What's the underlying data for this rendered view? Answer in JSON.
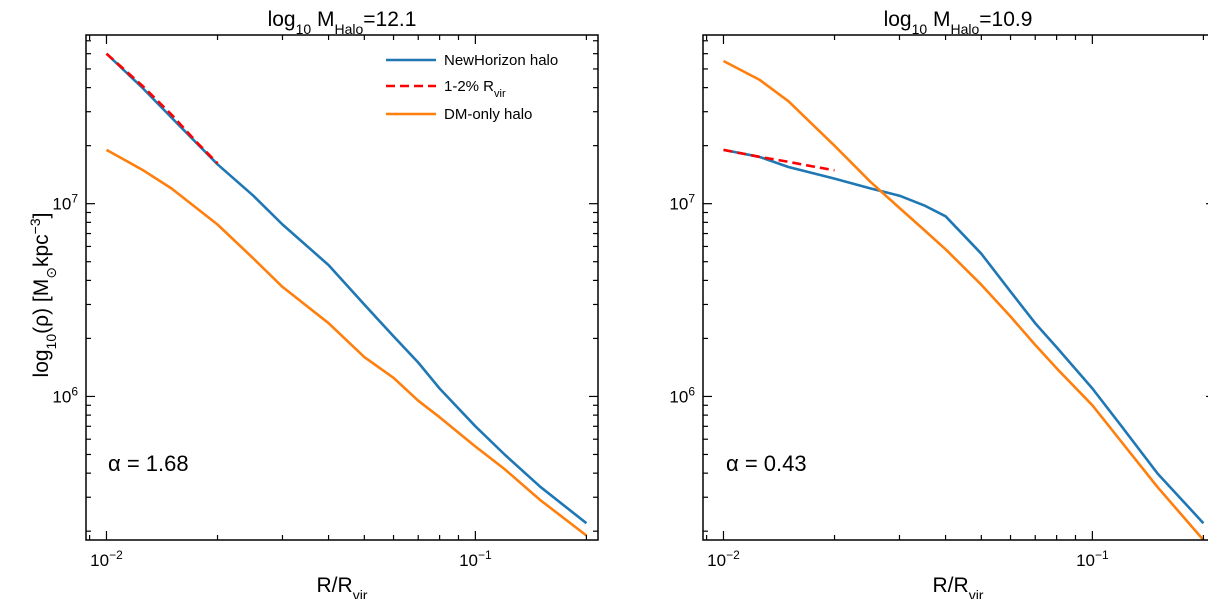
{
  "chart_data": [
    {
      "type": "line",
      "title": {
        "base": "log",
        "sub": "10",
        "mid": " M",
        "sub2": "Halo",
        "tail": "=12.1"
      },
      "xlabel": {
        "base": "R/R",
        "sub": "vir"
      },
      "ylabel": {
        "a": "log",
        "a_sub": "10",
        "b": "(ρ) [M",
        "b_sub": "⊙",
        "c": "kpc",
        "c_sup": "−3",
        "d": "]"
      },
      "x_scale": "log",
      "y_scale": "log",
      "xlim": [
        0.0088,
        0.215
      ],
      "ylim": [
        180000,
        75000000
      ],
      "x_ticks": [
        {
          "value": 0.01,
          "base": "10",
          "exp": "−2"
        },
        {
          "value": 0.1,
          "base": "10",
          "exp": "−1"
        }
      ],
      "y_ticks": [
        {
          "value": 1000000,
          "base": "10",
          "exp": "6"
        },
        {
          "value": 10000000,
          "base": "10",
          "exp": "7"
        }
      ],
      "annotation": "α = 1.68",
      "legend": {
        "position": "top-right",
        "entries": [
          {
            "label": "NewHorizon halo",
            "color": "#1f77b4",
            "style": "solid"
          },
          {
            "label": "1-2% R",
            "sub": "vir",
            "color": "#ff0000",
            "style": "dashed"
          },
          {
            "label": "DM-only halo",
            "color": "#ff7f0e",
            "style": "solid"
          }
        ]
      },
      "series": [
        {
          "name": "NewHorizon halo",
          "color": "#1f77b4",
          "style": "solid",
          "x": [
            0.01,
            0.0125,
            0.015,
            0.02,
            0.025,
            0.03,
            0.04,
            0.05,
            0.06,
            0.07,
            0.08,
            0.1,
            0.12,
            0.15,
            0.2
          ],
          "y": [
            60000000,
            40000000,
            28000000,
            16000000,
            11000000,
            7800000,
            4800000,
            3000000,
            2050000,
            1500000,
            1100000,
            700000,
            500000,
            340000,
            220000
          ]
        },
        {
          "name": "1-2% R_vir",
          "color": "#ff0000",
          "style": "dashed",
          "x": [
            0.01,
            0.0125,
            0.015,
            0.0175,
            0.02
          ],
          "y": [
            60000000,
            41000000,
            29000000,
            21000000,
            16200000
          ]
        },
        {
          "name": "DM-only halo",
          "color": "#ff7f0e",
          "style": "solid",
          "x": [
            0.01,
            0.0125,
            0.015,
            0.02,
            0.025,
            0.03,
            0.04,
            0.05,
            0.06,
            0.07,
            0.08,
            0.1,
            0.12,
            0.15,
            0.2
          ],
          "y": [
            19000000,
            15000000,
            12000000,
            7800000,
            5200000,
            3700000,
            2400000,
            1600000,
            1250000,
            950000,
            780000,
            550000,
            420000,
            290000,
            190000
          ]
        }
      ]
    },
    {
      "type": "line",
      "title": {
        "base": "log",
        "sub": "10",
        "mid": " M",
        "sub2": "Halo",
        "tail": "=10.9"
      },
      "xlabel": {
        "base": "R/R",
        "sub": "vir"
      },
      "x_scale": "log",
      "y_scale": "log",
      "xlim": [
        0.0088,
        0.215
      ],
      "ylim": [
        180000,
        75000000
      ],
      "x_ticks": [
        {
          "value": 0.01,
          "base": "10",
          "exp": "−2"
        },
        {
          "value": 0.1,
          "base": "10",
          "exp": "−1"
        }
      ],
      "y_ticks": [
        {
          "value": 1000000,
          "base": "10",
          "exp": "6"
        },
        {
          "value": 10000000,
          "base": "10",
          "exp": "7"
        }
      ],
      "annotation": "α = 0.43",
      "series": [
        {
          "name": "NewHorizon halo",
          "color": "#1f77b4",
          "style": "solid",
          "x": [
            0.01,
            0.0125,
            0.015,
            0.02,
            0.025,
            0.03,
            0.035,
            0.04,
            0.05,
            0.06,
            0.07,
            0.08,
            0.1,
            0.12,
            0.15,
            0.2
          ],
          "y": [
            19000000,
            17500000,
            15500000,
            13500000,
            12000000,
            11000000,
            9800000,
            8600000,
            5500000,
            3500000,
            2400000,
            1800000,
            1100000,
            700000,
            400000,
            220000
          ]
        },
        {
          "name": "1-2% R_vir",
          "color": "#ff0000",
          "style": "dashed",
          "x": [
            0.01,
            0.0125,
            0.015,
            0.0175,
            0.02
          ],
          "y": [
            19000000,
            17500000,
            16500000,
            15600000,
            14900000
          ]
        },
        {
          "name": "DM-only halo",
          "color": "#ff7f0e",
          "style": "solid",
          "x": [
            0.01,
            0.0125,
            0.015,
            0.02,
            0.025,
            0.03,
            0.035,
            0.04,
            0.05,
            0.06,
            0.07,
            0.08,
            0.1,
            0.12,
            0.15,
            0.2
          ],
          "y": [
            55000000,
            44000000,
            34000000,
            20000000,
            13000000,
            9500000,
            7300000,
            5800000,
            3800000,
            2600000,
            1850000,
            1400000,
            900000,
            580000,
            340000,
            180000
          ]
        }
      ]
    }
  ]
}
